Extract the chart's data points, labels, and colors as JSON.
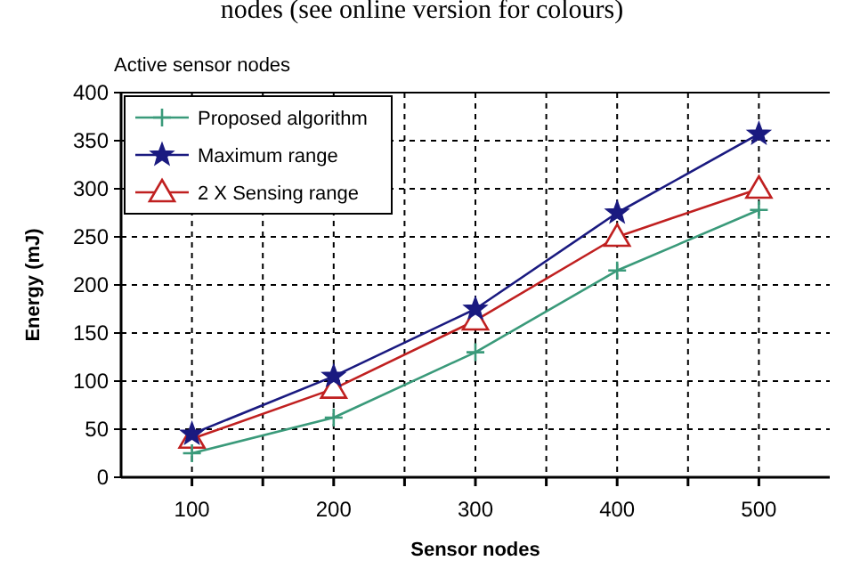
{
  "chart_data": {
    "type": "line",
    "title": "Active sensor nodes",
    "annotations": [
      "nodes (see online version for colours)"
    ],
    "xlabel": "Sensor nodes",
    "ylabel": "Energy (mJ)",
    "x": [
      100,
      200,
      300,
      400,
      500
    ],
    "series": [
      {
        "name": "Proposed algorithm",
        "color": "#3a9a7a",
        "marker": "cross",
        "values": [
          25,
          62,
          130,
          215,
          278
        ]
      },
      {
        "name": "Maximum range",
        "color": "#1a1a80",
        "marker": "star",
        "values": [
          45,
          105,
          175,
          275,
          357
        ]
      },
      {
        "name": "2 X Sensing range",
        "color": "#c02020",
        "marker": "triangle",
        "values": [
          40,
          92,
          163,
          250,
          300
        ]
      }
    ],
    "xlim": [
      50,
      550
    ],
    "xticks": [
      100,
      {
        "value": 150,
        "label": null
      },
      200,
      {
        "value": 250,
        "label": null
      },
      300,
      {
        "value": 350,
        "label": null
      },
      400,
      {
        "value": 450,
        "label": null
      },
      500
    ],
    "ylim": [
      0,
      400
    ],
    "yticks": [
      0,
      50,
      100,
      150,
      200,
      250,
      300,
      350,
      400
    ],
    "grid": true,
    "legend": "top left",
    "line_style": "solid"
  }
}
